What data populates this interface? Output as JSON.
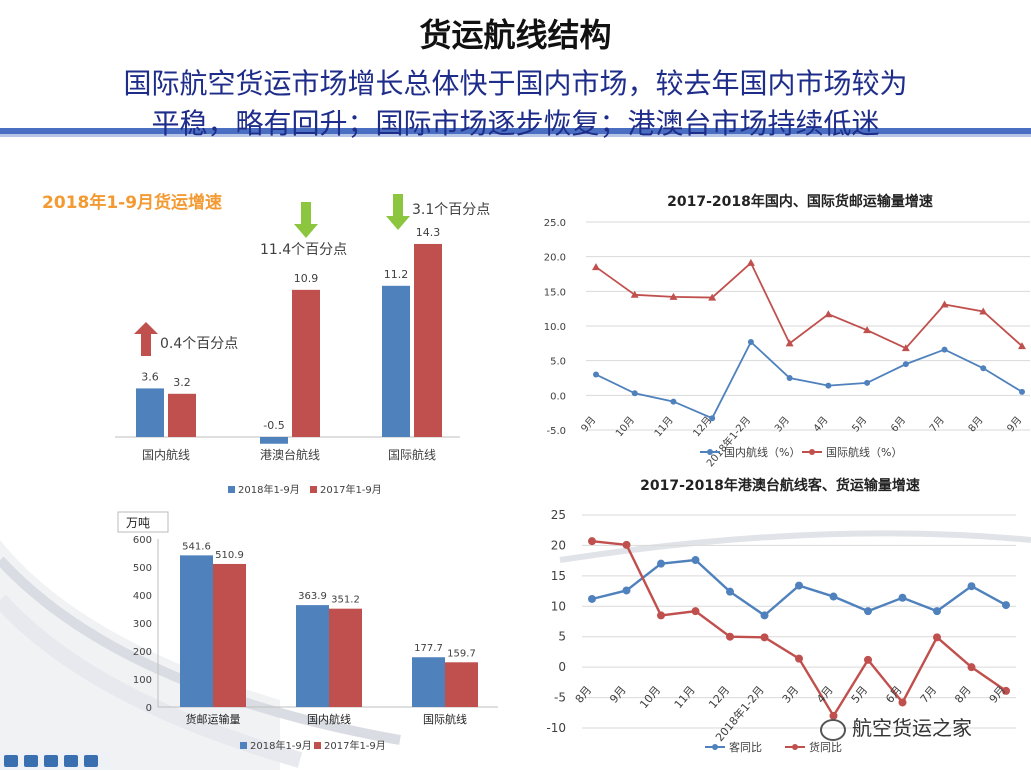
{
  "page": {
    "title": "货运航线结构",
    "subtitle_line1": "国际航空货运市场增长总体快于国内市场，较去年国内市场较为",
    "subtitle_line2": "平稳，略有回升；国际市场逐步恢复；港澳台市场持续低迷",
    "watermark": "航空货运之家",
    "colors": {
      "blue": "#4f81bd",
      "red": "#c0504d",
      "title": "#1f2d8a",
      "orange": "#f39a32",
      "arrow_green": "#8cc63f",
      "arrow_red": "#c0504d"
    }
  },
  "chart_data": [
    {
      "type": "bar",
      "title": "2018年1-9月货运增速",
      "categories": [
        "国内航线",
        "港澳台航线",
        "国际航线"
      ],
      "series": [
        {
          "name": "2018年1-9月",
          "values": [
            3.6,
            -0.5,
            11.2
          ],
          "labels": [
            "3.6",
            "-0.5",
            "11.2"
          ]
        },
        {
          "name": "2017年1-9月",
          "values": [
            3.2,
            10.9,
            14.3
          ],
          "labels": [
            "3.2",
            "10.9",
            "14.3"
          ]
        }
      ],
      "annotations": [
        {
          "text": "0.4个百分点",
          "direction": "up"
        },
        {
          "text": "11.4个百分点",
          "direction": "down"
        },
        {
          "text": "3.1个百分点",
          "direction": "down"
        }
      ],
      "legend": "bottom"
    },
    {
      "type": "bar",
      "unit": "万吨",
      "categories": [
        "货邮运输量",
        "国内航线",
        "国际航线"
      ],
      "series": [
        {
          "name": "2018年1-9月",
          "values": [
            541.6,
            363.9,
            177.7
          ],
          "labels": [
            "541.6",
            "363.9",
            "177.7"
          ]
        },
        {
          "name": "2017年1-9月",
          "values": [
            510.9,
            351.2,
            159.7
          ],
          "labels": [
            "510.9",
            "351.2",
            "159.7"
          ]
        }
      ],
      "ylim": [
        0,
        600
      ],
      "yticks": [
        "0",
        "100",
        "200",
        "300",
        "400",
        "500",
        "600"
      ],
      "legend": "bottom"
    },
    {
      "type": "line",
      "title": "2017-2018年国内、国际货邮运输量增速",
      "categories": [
        "9月",
        "10月",
        "11月",
        "12月",
        "2018年1-2月",
        "3月",
        "4月",
        "5月",
        "6月",
        "7月",
        "8月",
        "9月"
      ],
      "series": [
        {
          "name": "国内航线（%）",
          "values": [
            3.0,
            0.3,
            -0.9,
            -3.3,
            7.7,
            2.5,
            1.4,
            1.8,
            4.5,
            6.6,
            3.9,
            0.5
          ]
        },
        {
          "name": "国际航线（%）",
          "values": [
            18.5,
            14.5,
            14.2,
            14.1,
            19.1,
            7.5,
            11.7,
            9.4,
            6.8,
            13.1,
            12.1,
            7.1
          ]
        }
      ],
      "ylim": [
        -5,
        25
      ],
      "yticks": [
        "-5.0",
        "0.0",
        "5.0",
        "10.0",
        "15.0",
        "20.0",
        "25.0"
      ],
      "grid": true,
      "legend": "bottom"
    },
    {
      "type": "line",
      "title": "2017-2018年港澳台航线客、货运输量增速",
      "categories": [
        "8月",
        "9月",
        "10月",
        "11月",
        "12月",
        "2018年1-2月",
        "3月",
        "4月",
        "5月",
        "6月",
        "7月",
        "8月",
        "9月"
      ],
      "series": [
        {
          "name": "客同比",
          "values": [
            11.2,
            12.6,
            17.0,
            17.6,
            12.4,
            8.5,
            13.4,
            11.6,
            9.2,
            11.4,
            9.2,
            13.3,
            10.2
          ]
        },
        {
          "name": "货同比",
          "values": [
            20.7,
            20.1,
            8.5,
            9.2,
            5.0,
            4.9,
            1.4,
            -8.0,
            1.2,
            -5.8,
            4.9,
            0.0,
            -3.9
          ]
        }
      ],
      "ylim": [
        -10,
        25
      ],
      "yticks": [
        "-10",
        "-5",
        "0",
        "5",
        "10",
        "15",
        "20",
        "25"
      ],
      "grid": true,
      "legend": "bottom"
    }
  ]
}
